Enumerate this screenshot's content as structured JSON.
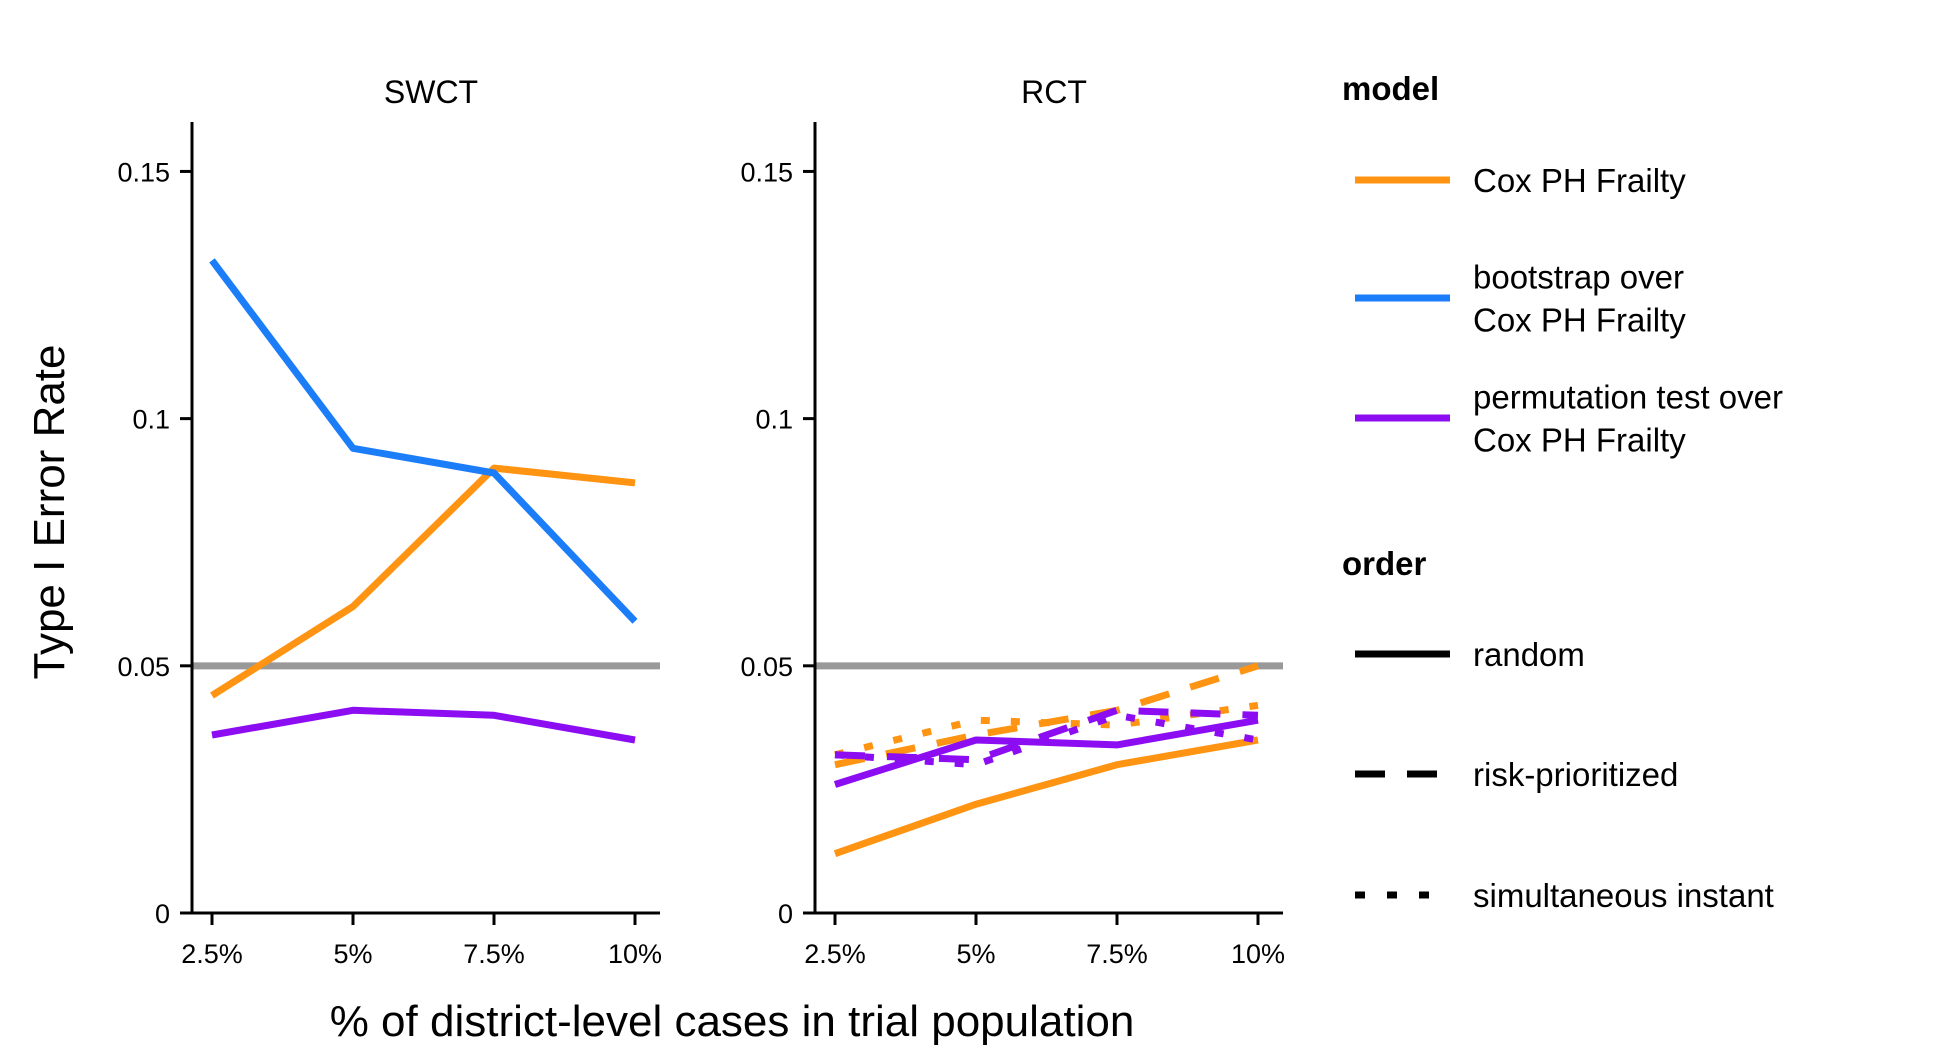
{
  "chart_data": {
    "type": "line",
    "xlabel": "% of district-level cases in trial population",
    "ylabel": "Type I Error Rate",
    "x_ticks": [
      "2.5%",
      "5%",
      "7.5%",
      "10%"
    ],
    "x_values": [
      2.5,
      5,
      7.5,
      10
    ],
    "ylim": [
      0,
      0.16
    ],
    "y_ticks": [
      {
        "value": 0,
        "label": "0"
      },
      {
        "value": 0.05,
        "label": "0.05"
      },
      {
        "value": 0.1,
        "label": "0.1"
      },
      {
        "value": 0.15,
        "label": "0.15"
      }
    ],
    "reference_line": {
      "y": 0.05,
      "color": "#999999"
    },
    "grid": false,
    "colors": {
      "Cox PH Frailty": "#FF9312",
      "bootstrap over Cox PH Frailty": "#1C7DF8",
      "permutation test over Cox PH Frailty": "#8C0DF2"
    },
    "panels": [
      {
        "title": "SWCT",
        "series": [
          {
            "model": "Cox PH Frailty",
            "order": "random",
            "values": [
              0.044,
              0.062,
              0.09,
              0.087
            ]
          },
          {
            "model": "bootstrap over Cox PH Frailty",
            "order": "random",
            "values": [
              0.132,
              0.094,
              0.089,
              0.059
            ]
          },
          {
            "model": "permutation test over Cox PH Frailty",
            "order": "random",
            "values": [
              0.036,
              0.041,
              0.04,
              0.035
            ]
          }
        ]
      },
      {
        "title": "RCT",
        "series": [
          {
            "model": "Cox PH Frailty",
            "order": "random",
            "values": [
              0.012,
              0.022,
              0.03,
              0.035
            ]
          },
          {
            "model": "Cox PH Frailty",
            "order": "risk-prioritized",
            "values": [
              0.03,
              0.036,
              0.041,
              0.05
            ]
          },
          {
            "model": "Cox PH Frailty",
            "order": "simultaneous instant",
            "values": [
              0.032,
              0.039,
              0.038,
              0.042
            ]
          },
          {
            "model": "permutation test over Cox PH Frailty",
            "order": "random",
            "values": [
              0.026,
              0.035,
              0.034,
              0.039
            ]
          },
          {
            "model": "permutation test over Cox PH Frailty",
            "order": "risk-prioritized",
            "values": [
              0.032,
              0.031,
              0.041,
              0.04
            ]
          },
          {
            "model": "permutation test over Cox PH Frailty",
            "order": "simultaneous instant",
            "values": [
              0.032,
              0.03,
              0.04,
              0.035
            ]
          }
        ]
      }
    ],
    "legend": {
      "placement": "right",
      "model_title": "model",
      "model_items": [
        {
          "lines": [
            "Cox PH Frailty"
          ],
          "key": "Cox PH Frailty"
        },
        {
          "lines": [
            "bootstrap over",
            "Cox PH Frailty"
          ],
          "key": "bootstrap over Cox PH Frailty"
        },
        {
          "lines": [
            "permutation test over",
            "Cox PH Frailty"
          ],
          "key": "permutation test over Cox PH Frailty"
        }
      ],
      "order_title": "order",
      "order_items": [
        "random",
        "risk-prioritized",
        "simultaneous instant"
      ]
    }
  }
}
